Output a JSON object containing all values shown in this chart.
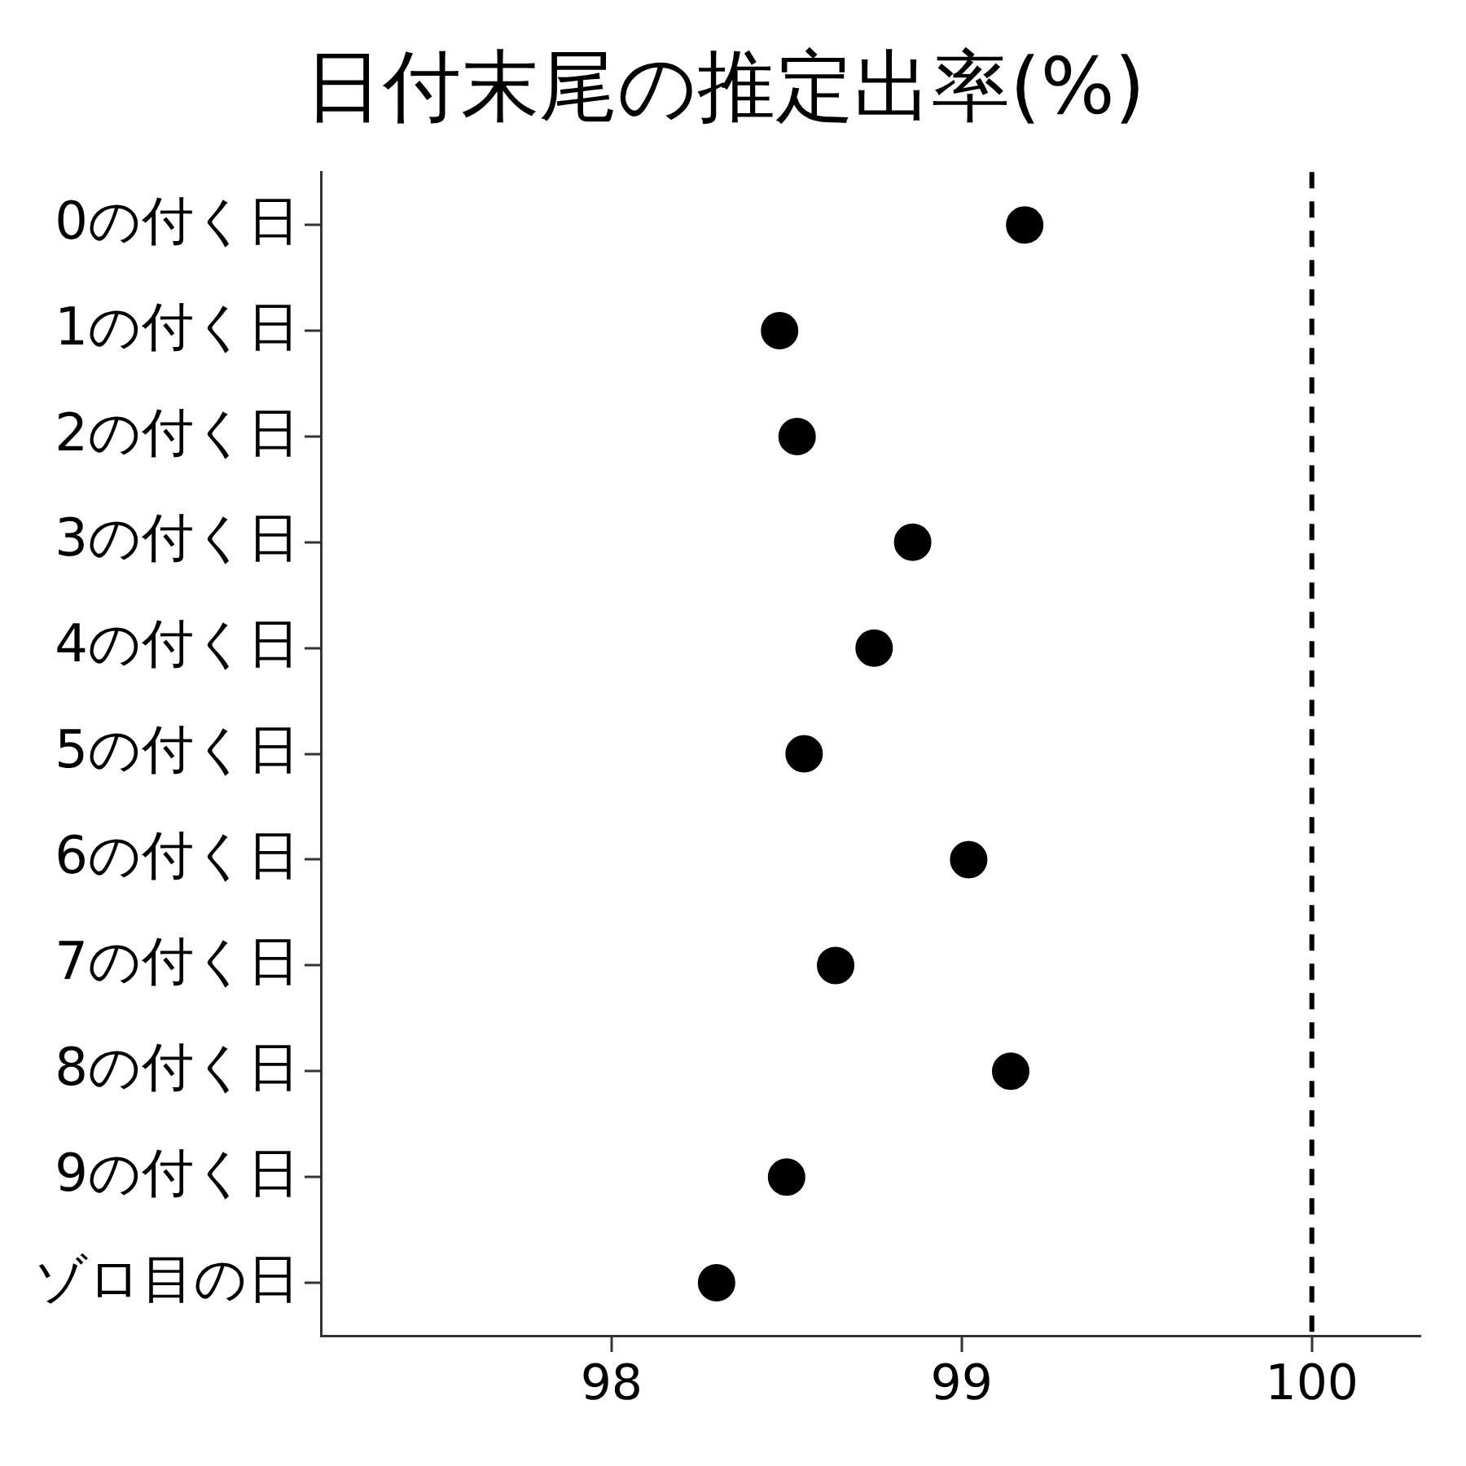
{
  "chart_data": {
    "type": "scatter",
    "title": "日付末尾の推定出率(%)",
    "orientation": "horizontal",
    "categories": [
      "0の付く日",
      "1の付く日",
      "2の付く日",
      "3の付く日",
      "4の付く日",
      "5の付く日",
      "6の付く日",
      "7の付く日",
      "8の付く日",
      "9の付く日",
      "ゾロ目の日"
    ],
    "series": [
      {
        "color": "#000000",
        "values": [
          99.18,
          98.48,
          98.53,
          98.86,
          98.75,
          98.55,
          99.02,
          98.64,
          99.14,
          98.5,
          98.3
        ]
      }
    ],
    "xlim": [
      97.17,
      100.31
    ],
    "xticks": [
      98,
      99,
      100
    ],
    "ref_lines": [
      {
        "axis": "x",
        "value": 100,
        "color": "#000000",
        "line_style": "dashed"
      }
    ],
    "grid": false,
    "legend": false,
    "marker": "circle"
  }
}
